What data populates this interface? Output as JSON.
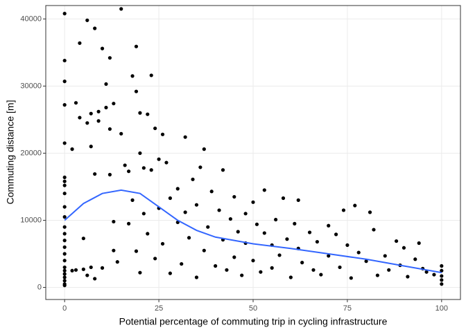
{
  "chart_data": {
    "type": "scatter",
    "xlabel": "Potential percentage of commuting trip in cycling infrastructure",
    "ylabel": "Commuting distance [m]",
    "xlim": [
      -5,
      105
    ],
    "ylim": [
      -1800,
      42000
    ],
    "xticks": [
      0,
      25,
      50,
      75,
      100
    ],
    "yticks": [
      0,
      10000,
      20000,
      30000,
      40000
    ],
    "grid": true,
    "color": "#000000",
    "x": [
      0,
      0,
      0,
      0,
      0,
      0,
      0,
      0,
      0,
      0,
      0,
      0,
      0,
      0,
      0,
      0,
      0,
      0,
      0,
      0,
      0,
      0,
      0,
      0,
      2,
      2,
      3,
      3,
      4,
      4,
      5,
      5,
      6,
      6,
      6,
      7,
      7,
      7,
      8,
      8,
      8,
      9,
      9,
      10,
      10,
      11,
      11,
      12,
      12,
      12,
      13,
      13,
      13,
      14,
      15,
      15,
      16,
      17,
      17,
      18,
      18,
      19,
      19,
      19,
      20,
      20,
      20,
      21,
      21,
      22,
      22,
      23,
      23,
      24,
      24,
      25,
      25,
      26,
      26,
      27,
      28,
      28,
      30,
      30,
      31,
      32,
      32,
      33,
      34,
      35,
      35,
      36,
      37,
      37,
      38,
      39,
      40,
      41,
      42,
      42,
      43,
      44,
      45,
      45,
      46,
      47,
      48,
      48,
      50,
      50,
      51,
      52,
      53,
      53,
      55,
      55,
      56,
      57,
      58,
      59,
      60,
      61,
      62,
      62,
      63,
      65,
      66,
      67,
      68,
      70,
      70,
      72,
      73,
      74,
      75,
      76,
      77,
      78,
      80,
      81,
      82,
      83,
      85,
      86,
      88,
      89,
      90,
      91,
      93,
      94,
      95,
      96,
      98,
      100,
      100,
      100,
      100,
      100
    ],
    "values": [
      40800,
      33800,
      30700,
      27200,
      21500,
      16400,
      15800,
      15200,
      14000,
      12000,
      10500,
      9000,
      8000,
      7000,
      6000,
      5000,
      4000,
      3000,
      2500,
      2000,
      1500,
      1000,
      500,
      300,
      20600,
      2500,
      27500,
      2600,
      36400,
      25300,
      7300,
      2700,
      39800,
      24500,
      1800,
      21000,
      25900,
      3000,
      38600,
      16900,
      1300,
      26200,
      24800,
      35600,
      2900,
      30300,
      26800,
      34200,
      23600,
      16800,
      27400,
      9800,
      5500,
      3800,
      41500,
      22900,
      18200,
      17300,
      9500,
      31500,
      13000,
      29200,
      35900,
      5400,
      26000,
      20000,
      2200,
      17800,
      11000,
      25800,
      8000,
      31600,
      17500,
      23700,
      4300,
      19100,
      11800,
      22800,
      6500,
      18600,
      13300,
      2100,
      14700,
      9700,
      3500,
      22400,
      11200,
      7400,
      16100,
      12300,
      1500,
      17900,
      20600,
      5500,
      9000,
      14300,
      3200,
      11500,
      17500,
      7100,
      2600,
      10200,
      13500,
      4500,
      8300,
      1800,
      11000,
      6600,
      12700,
      4000,
      9400,
      2300,
      14500,
      8100,
      6300,
      2900,
      10100,
      4800,
      13300,
      7200,
      1500,
      9500,
      13000,
      5800,
      3700,
      8200,
      2600,
      6800,
      1900,
      9200,
      4700,
      7900,
      3000,
      11500,
      6300,
      1400,
      12200,
      5200,
      3900,
      11200,
      8600,
      1800,
      4700,
      2600,
      6900,
      3300,
      5900,
      1600,
      4200,
      6600,
      2800,
      2300,
      1900,
      3200,
      2500,
      1700,
      1100,
      500
    ],
    "smooth": {
      "color": "#3366ff",
      "x": [
        0,
        5,
        10,
        15,
        20,
        25,
        30,
        35,
        40,
        50,
        60,
        70,
        80,
        90,
        100
      ],
      "values": [
        10000,
        12500,
        14000,
        14500,
        14000,
        12000,
        10000,
        8500,
        7500,
        6500,
        5800,
        5000,
        4200,
        3200,
        2200
      ]
    }
  }
}
